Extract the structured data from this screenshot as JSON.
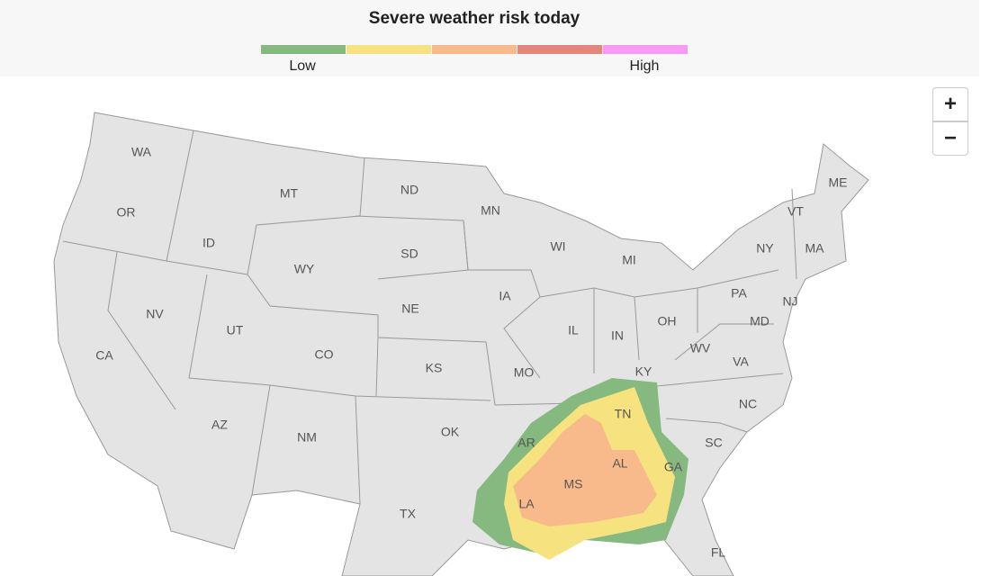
{
  "header": {
    "title": "Severe weather risk today"
  },
  "legend": {
    "colors": [
      "#85b97f",
      "#f6e27f",
      "#f8b98b",
      "#e5867d",
      "#f79af5"
    ],
    "low": "Low",
    "high": "High"
  },
  "zoom": {
    "in": "+",
    "out": "−"
  },
  "states": [
    "WA",
    "OR",
    "CA",
    "ID",
    "NV",
    "MT",
    "WY",
    "UT",
    "AZ",
    "CO",
    "NM",
    "ND",
    "SD",
    "NE",
    "KS",
    "OK",
    "TX",
    "MN",
    "IA",
    "MO",
    "AR",
    "LA",
    "WI",
    "IL",
    "MI",
    "IN",
    "KY",
    "TN",
    "MS",
    "AL",
    "OH",
    "GA",
    "FL",
    "SC",
    "NC",
    "VA",
    "WV",
    "PA",
    "MD",
    "NY",
    "NJ",
    "VT",
    "MA",
    "ME"
  ]
}
